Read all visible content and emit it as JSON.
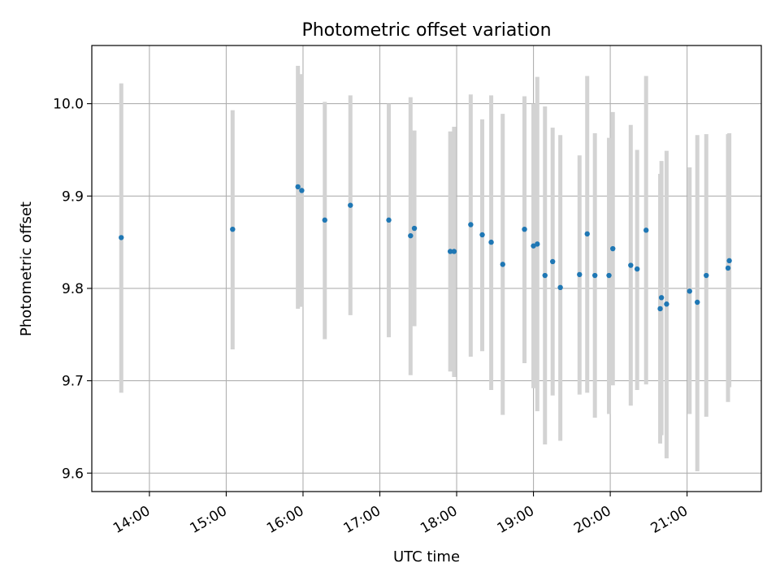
{
  "chart_data": {
    "type": "scatter",
    "title": "Photometric offset variation",
    "xlabel": "UTC time",
    "ylabel": "Photometric offset",
    "xlim": [
      "13:15",
      "21:58"
    ],
    "ylim": [
      9.58,
      10.063
    ],
    "x_ticks": [
      "14:00",
      "15:00",
      "16:00",
      "17:00",
      "18:00",
      "19:00",
      "20:00",
      "21:00"
    ],
    "y_ticks": [
      9.6,
      9.7,
      9.8,
      9.9,
      10.0
    ],
    "y_tick_labels": [
      "9.6",
      "9.7",
      "9.8",
      "9.9",
      "10.0"
    ],
    "grid": true,
    "point_color": "#1f77b4",
    "errorbar_color": "#d3d3d3",
    "points": [
      {
        "x": "13:38",
        "y": 9.855,
        "lo": 9.687,
        "hi": 10.022
      },
      {
        "x": "15:05",
        "y": 9.864,
        "lo": 9.734,
        "hi": 9.993
      },
      {
        "x": "15:56",
        "y": 9.91,
        "lo": 9.778,
        "hi": 10.041
      },
      {
        "x": "15:59",
        "y": 9.906,
        "lo": 9.78,
        "hi": 10.032
      },
      {
        "x": "16:17",
        "y": 9.874,
        "lo": 9.745,
        "hi": 10.002
      },
      {
        "x": "16:37",
        "y": 9.89,
        "lo": 9.771,
        "hi": 10.009
      },
      {
        "x": "17:07",
        "y": 9.874,
        "lo": 9.747,
        "hi": 10.0
      },
      {
        "x": "17:24",
        "y": 9.857,
        "lo": 9.706,
        "hi": 10.007
      },
      {
        "x": "17:27",
        "y": 9.865,
        "lo": 9.759,
        "hi": 9.971
      },
      {
        "x": "17:55",
        "y": 9.84,
        "lo": 9.71,
        "hi": 9.97
      },
      {
        "x": "17:58",
        "y": 9.84,
        "lo": 9.704,
        "hi": 9.975
      },
      {
        "x": "18:11",
        "y": 9.869,
        "lo": 9.726,
        "hi": 10.01
      },
      {
        "x": "18:20",
        "y": 9.858,
        "lo": 9.732,
        "hi": 9.983
      },
      {
        "x": "18:27",
        "y": 9.85,
        "lo": 9.69,
        "hi": 10.009
      },
      {
        "x": "18:36",
        "y": 9.826,
        "lo": 9.663,
        "hi": 9.989
      },
      {
        "x": "18:53",
        "y": 9.864,
        "lo": 9.719,
        "hi": 10.008
      },
      {
        "x": "19:00",
        "y": 9.846,
        "lo": 9.692,
        "hi": 10.0
      },
      {
        "x": "19:03",
        "y": 9.848,
        "lo": 9.667,
        "hi": 10.029
      },
      {
        "x": "19:09",
        "y": 9.814,
        "lo": 9.631,
        "hi": 9.997
      },
      {
        "x": "19:15",
        "y": 9.829,
        "lo": 9.684,
        "hi": 9.974
      },
      {
        "x": "19:21",
        "y": 9.801,
        "lo": 9.635,
        "hi": 9.966
      },
      {
        "x": "19:36",
        "y": 9.815,
        "lo": 9.685,
        "hi": 9.944
      },
      {
        "x": "19:42",
        "y": 9.859,
        "lo": 9.687,
        "hi": 10.03
      },
      {
        "x": "19:48",
        "y": 9.814,
        "lo": 9.66,
        "hi": 9.968
      },
      {
        "x": "19:59",
        "y": 9.814,
        "lo": 9.664,
        "hi": 9.963
      },
      {
        "x": "20:02",
        "y": 9.843,
        "lo": 9.695,
        "hi": 9.991
      },
      {
        "x": "20:16",
        "y": 9.825,
        "lo": 9.673,
        "hi": 9.977
      },
      {
        "x": "20:21",
        "y": 9.821,
        "lo": 9.69,
        "hi": 9.95
      },
      {
        "x": "20:28",
        "y": 9.863,
        "lo": 9.696,
        "hi": 10.03
      },
      {
        "x": "20:39",
        "y": 9.778,
        "lo": 9.632,
        "hi": 9.924
      },
      {
        "x": "20:40",
        "y": 9.79,
        "lo": 9.641,
        "hi": 9.938
      },
      {
        "x": "20:44",
        "y": 9.783,
        "lo": 9.616,
        "hi": 9.949
      },
      {
        "x": "21:02",
        "y": 9.797,
        "lo": 9.664,
        "hi": 9.931
      },
      {
        "x": "21:08",
        "y": 9.785,
        "lo": 9.602,
        "hi": 9.966
      },
      {
        "x": "21:15",
        "y": 9.814,
        "lo": 9.661,
        "hi": 9.967
      },
      {
        "x": "21:32",
        "y": 9.822,
        "lo": 9.677,
        "hi": 9.967
      },
      {
        "x": "21:33",
        "y": 9.83,
        "lo": 9.693,
        "hi": 9.968
      }
    ]
  }
}
